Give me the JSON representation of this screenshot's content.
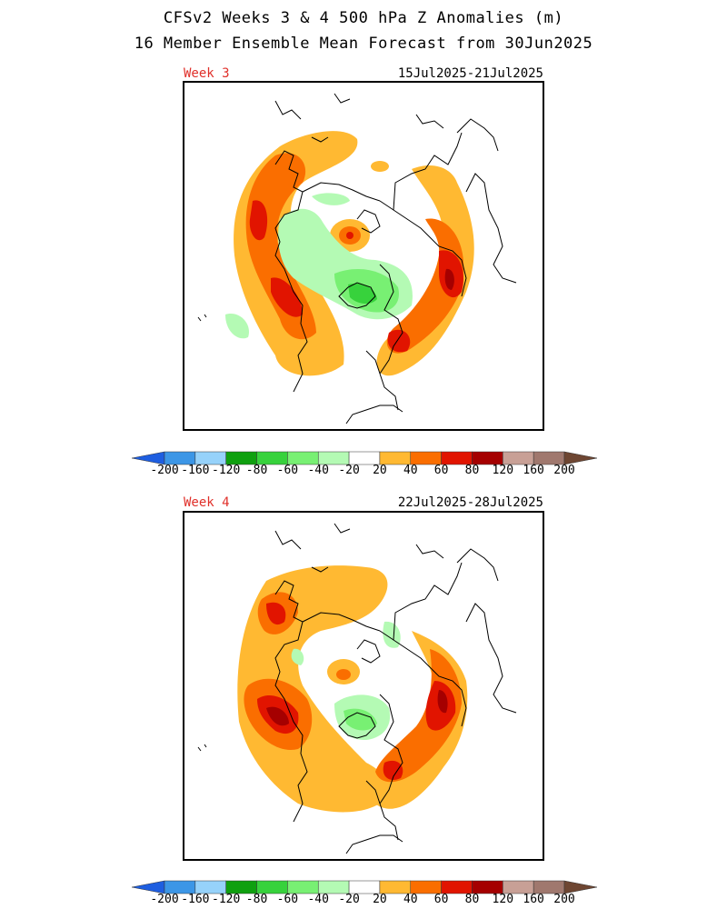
{
  "header": {
    "title_line1": "CFSv2 Weeks 3 & 4 500 hPa Z Anomalies (m)",
    "title_line2": "16 Member Ensemble Mean Forecast from 30Jun2025"
  },
  "panels": [
    {
      "week_label": "Week 3",
      "date_range": "15Jul2025-21Jul2025"
    },
    {
      "week_label": "Week 4",
      "date_range": "22Jul2025-28Jul2025"
    }
  ],
  "colorbar": {
    "colors": [
      "#1e5ee0",
      "#3c96e6",
      "#96d2fa",
      "#0fa00f",
      "#37d23c",
      "#78f073",
      "#b4fab4",
      "#ffffff",
      "#ffb932",
      "#fa6e00",
      "#e11400",
      "#a50000",
      "#c8a096",
      "#a0786e",
      "#6e4632"
    ],
    "ticks": [
      "-200",
      "-160",
      "-120",
      "-80",
      "-60",
      "-40",
      "-20",
      "20",
      "40",
      "60",
      "80",
      "120",
      "160",
      "200"
    ]
  },
  "palette": {
    "light_orange": "#ffb932",
    "orange": "#fa6e00",
    "red": "#e11400",
    "dark_red": "#a50000",
    "light_green": "#b4fab4",
    "green": "#78f073",
    "mid_green": "#37d23c"
  }
}
